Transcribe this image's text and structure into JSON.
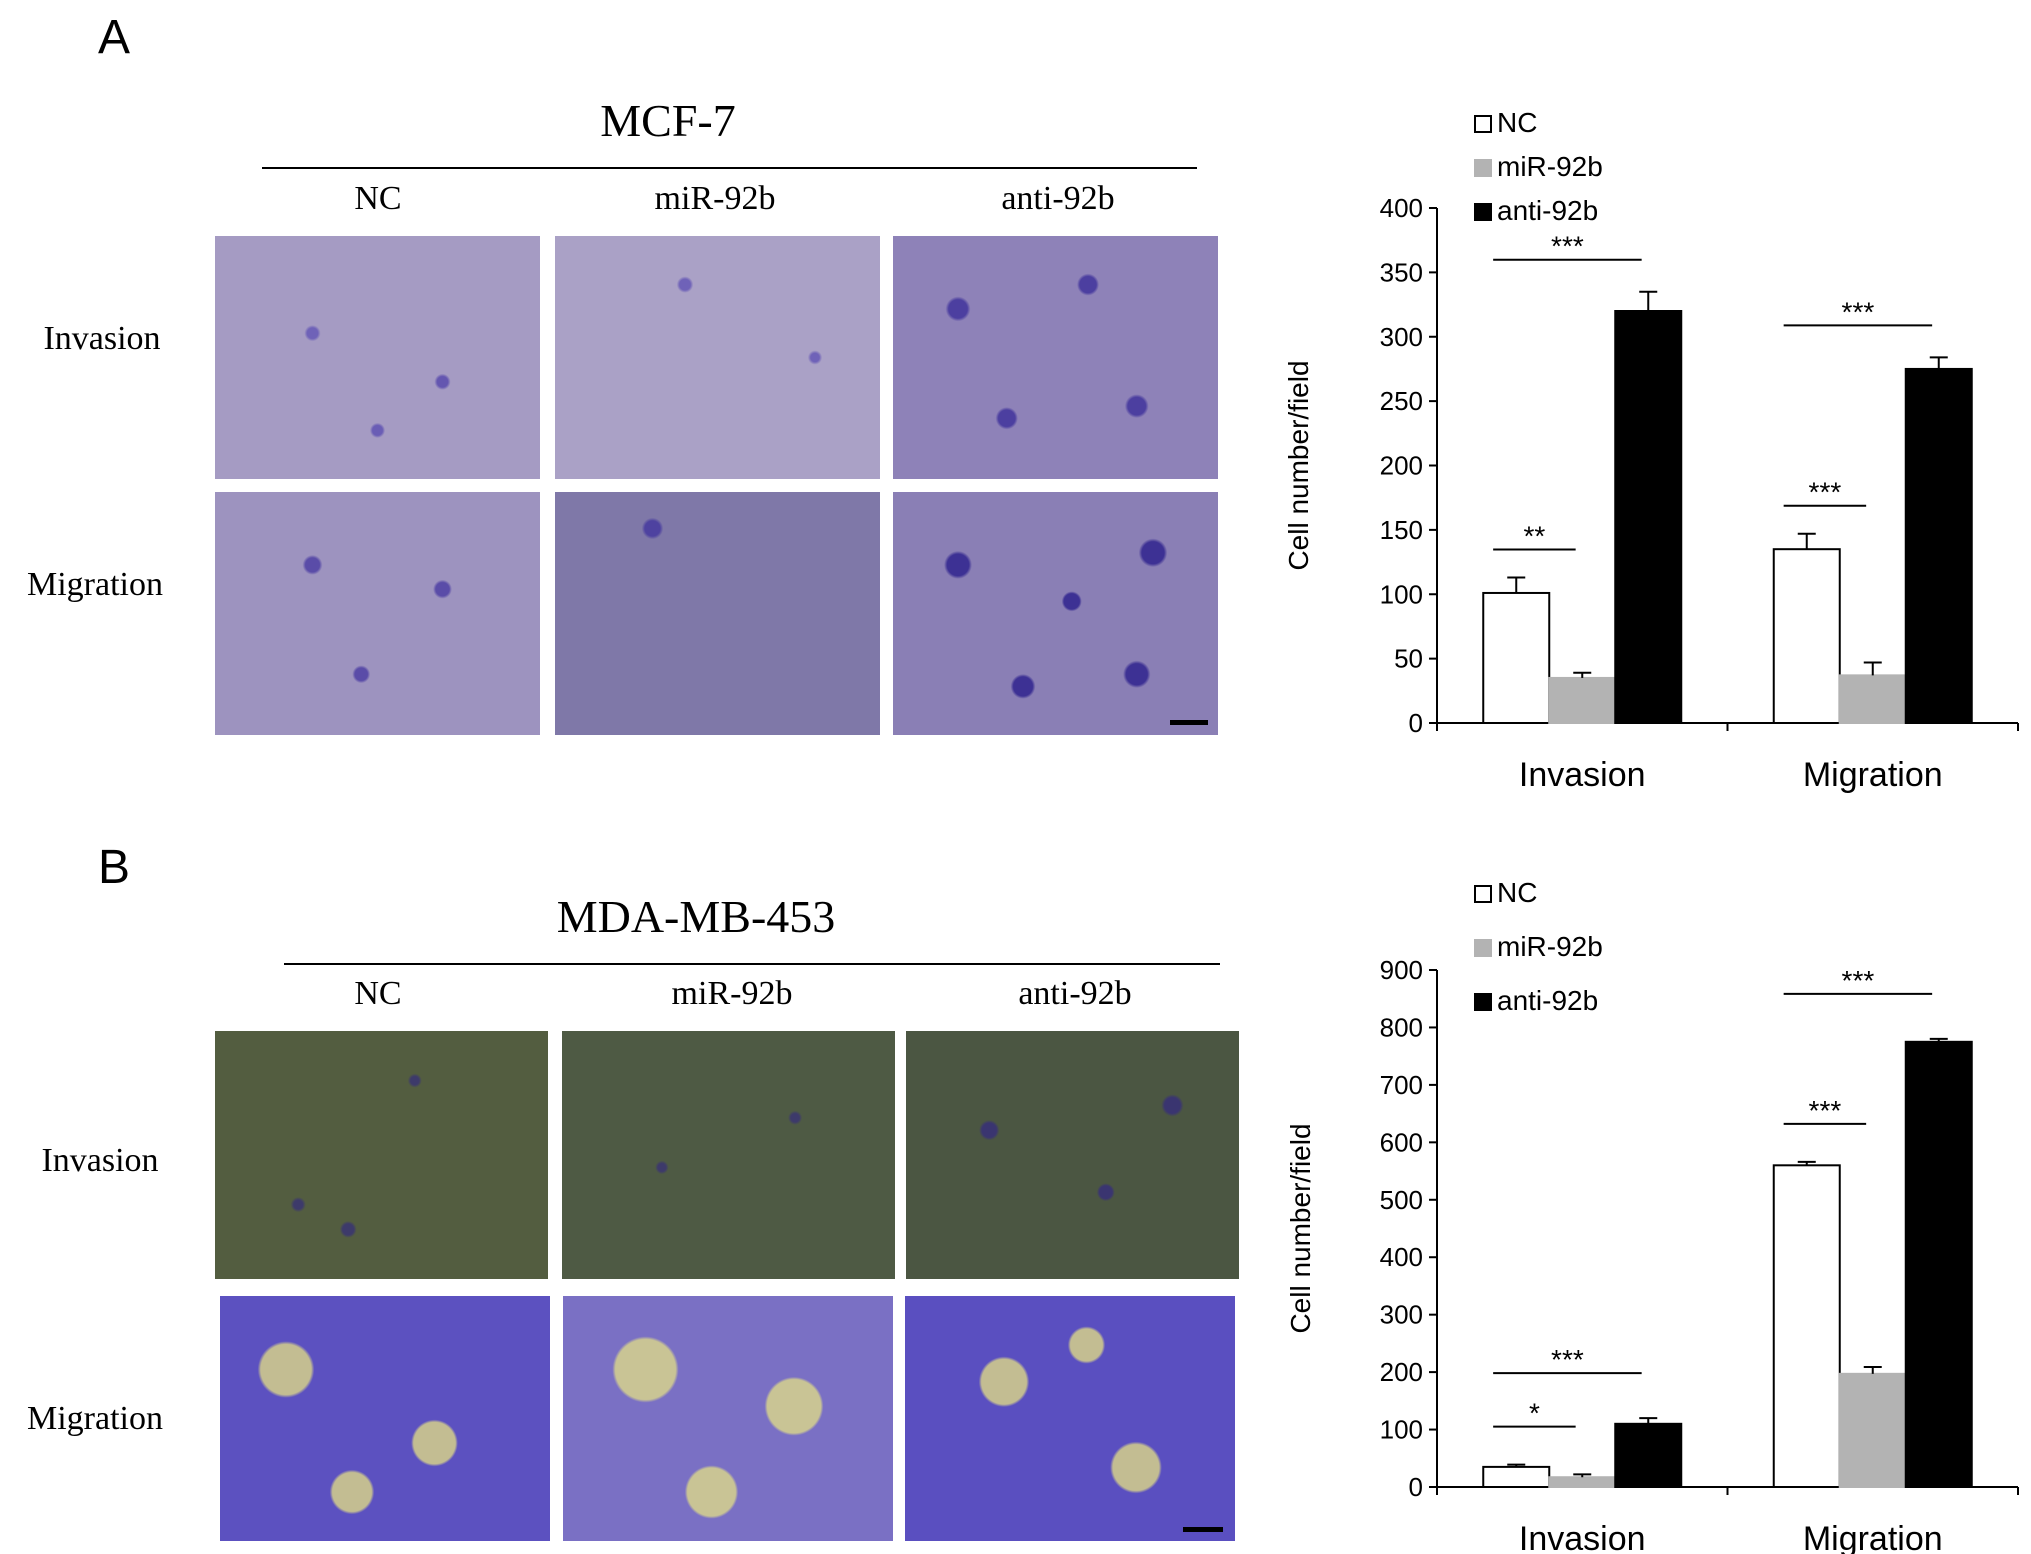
{
  "figure": {
    "panels": [
      {
        "letter": "A",
        "cell_line": "MCF-7",
        "columns": [
          "NC",
          "miR-92b",
          "anti-92b"
        ],
        "rows": [
          "Invasion",
          "Migration"
        ]
      },
      {
        "letter": "B",
        "cell_line": "MDA-MB-453",
        "columns": [
          "NC",
          "miR-92b",
          "anti-92b"
        ],
        "rows": [
          "Invasion",
          "Migration"
        ]
      }
    ]
  },
  "colors": {
    "nc": "#ffffff",
    "mir": "#b3b3b3",
    "anti": "#000000",
    "stain_purple": "#5a4fa8",
    "background_a": "#9c92b8",
    "background_b_invasion": "#4e5a3c",
    "background_b_migration": "#b8b390"
  },
  "chart_data": [
    {
      "type": "bar",
      "categories": [
        "Invasion",
        "Migration"
      ],
      "series": [
        {
          "name": "NC",
          "values": [
            101,
            135
          ],
          "errors": [
            12,
            12
          ]
        },
        {
          "name": "miR-92b",
          "values": [
            35,
            37
          ],
          "errors": [
            4,
            10
          ]
        },
        {
          "name": "anti-92b",
          "values": [
            320,
            275
          ],
          "errors": [
            15,
            9
          ]
        }
      ],
      "ylabel": "Cell number/field",
      "ylim": [
        0,
        400
      ],
      "yticks": [
        "0",
        "50",
        "100",
        "150",
        "200",
        "250",
        "300",
        "350",
        "400"
      ],
      "significance": [
        {
          "category": "Invasion",
          "pair": "NC-anti-92b",
          "label": "***"
        },
        {
          "category": "Invasion",
          "pair": "NC-miR-92b",
          "label": "**"
        },
        {
          "category": "Migration",
          "pair": "NC-anti-92b",
          "label": "***"
        },
        {
          "category": "Migration",
          "pair": "NC-miR-92b",
          "label": "***"
        }
      ],
      "legend": "top-left"
    },
    {
      "type": "bar",
      "categories": [
        "Invasion",
        "Migration"
      ],
      "series": [
        {
          "name": "NC",
          "values": [
            35,
            560
          ],
          "errors": [
            4,
            6
          ]
        },
        {
          "name": "miR-92b",
          "values": [
            17,
            197
          ],
          "errors": [
            5,
            12
          ]
        },
        {
          "name": "anti-92b",
          "values": [
            110,
            775
          ],
          "errors": [
            10,
            5
          ]
        }
      ],
      "ylabel": "Cell number/field",
      "ylim": [
        0,
        900
      ],
      "yticks": [
        "0",
        "100",
        "200",
        "300",
        "400",
        "500",
        "600",
        "700",
        "800",
        "900"
      ],
      "significance": [
        {
          "category": "Invasion",
          "pair": "NC-anti-92b",
          "label": "***"
        },
        {
          "category": "Invasion",
          "pair": "NC-miR-92b",
          "label": "*"
        },
        {
          "category": "Migration",
          "pair": "NC-anti-92b",
          "label": "***"
        },
        {
          "category": "Migration",
          "pair": "NC-miR-92b",
          "label": "***"
        }
      ],
      "legend": "top-left"
    }
  ]
}
